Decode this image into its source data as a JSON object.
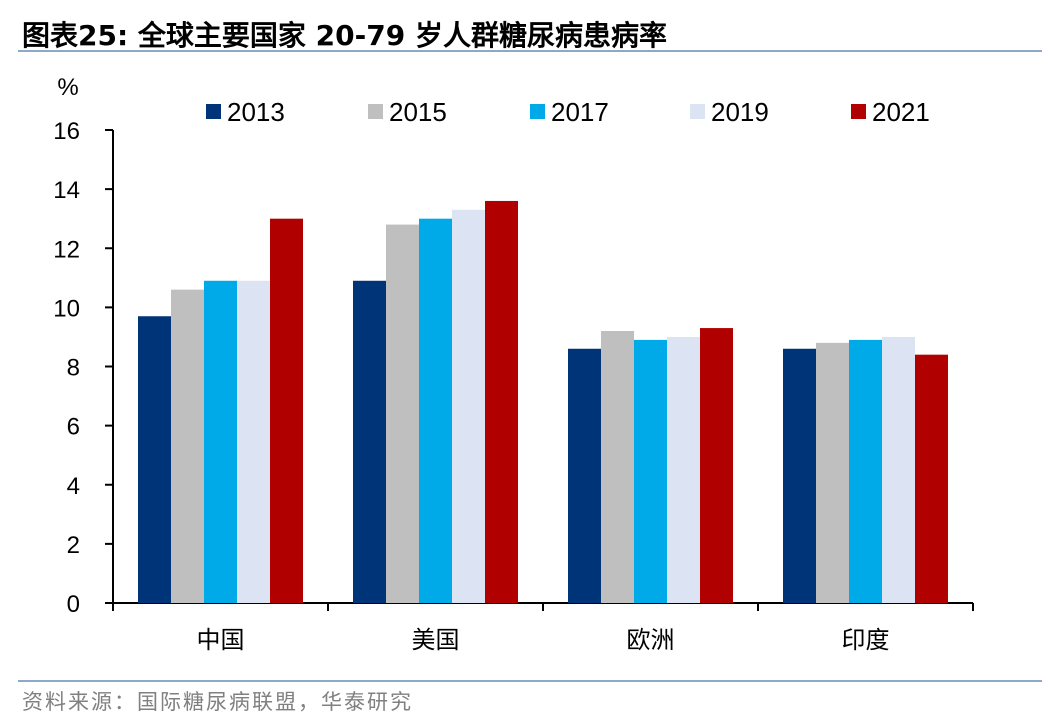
{
  "header": {
    "title": "图表25:  全球主要国家 20-79 岁人群糖尿病患病率"
  },
  "footer": {
    "source": "资料来源：国际糖尿病联盟，华泰研究"
  },
  "chart_data": {
    "type": "bar",
    "ylabel": "%",
    "ylim": [
      0,
      16
    ],
    "yticks": [
      "0",
      "2",
      "4",
      "6",
      "8",
      "10",
      "12",
      "14",
      "16"
    ],
    "categories": [
      "中国",
      "美国",
      "欧洲",
      "印度"
    ],
    "legend_position": "top",
    "grid": false,
    "series": [
      {
        "name": "2013",
        "color": "#003478",
        "values": [
          9.7,
          10.9,
          8.6,
          8.6
        ]
      },
      {
        "name": "2015",
        "color": "#BFBFBF",
        "values": [
          10.6,
          12.8,
          9.2,
          8.8
        ]
      },
      {
        "name": "2017",
        "color": "#00A9E8",
        "values": [
          10.9,
          13.0,
          8.9,
          8.9
        ]
      },
      {
        "name": "2019",
        "color": "#DCE3F2",
        "values": [
          10.9,
          13.3,
          9.0,
          9.0
        ]
      },
      {
        "name": "2021",
        "color": "#B00000",
        "values": [
          13.0,
          13.6,
          9.3,
          8.4
        ]
      }
    ]
  }
}
